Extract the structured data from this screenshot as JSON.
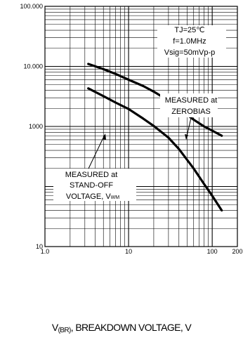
{
  "chart_data": {
    "type": "line",
    "x_scale": "log",
    "y_scale": "log",
    "xlim": [
      1,
      200
    ],
    "ylim": [
      10,
      100000
    ],
    "x_ticks": [
      {
        "value": 1,
        "label": "1.0"
      },
      {
        "value": 10,
        "label": "10"
      },
      {
        "value": 100,
        "label": "100"
      },
      {
        "value": 200,
        "label": "200"
      }
    ],
    "y_ticks": [
      {
        "value": 10,
        "label": "10"
      },
      {
        "value": 1000,
        "label": "1000"
      },
      {
        "value": 10000,
        "label": "10.000"
      },
      {
        "value": 100000,
        "label": "100.000"
      }
    ],
    "grid": true,
    "xlabel": {
      "main": "V",
      "sub": "(BR)",
      "rest": ", BREAKDOWN VOLTAGE, V"
    },
    "conditions": [
      "TJ=25℃",
      "f=1.0MHz",
      "Vsig=50mVp-p"
    ],
    "series": [
      {
        "name": "MEASURED at ZEROBIAS",
        "label_lines": [
          "MEASURED at",
          "ZEROBIAS"
        ],
        "x": [
          3.3,
          5,
          7,
          10,
          15,
          20,
          30,
          40,
          60,
          80,
          100,
          130
        ],
        "y": [
          11000,
          9000,
          7500,
          6000,
          4700,
          3800,
          2700,
          2000,
          1300,
          1000,
          850,
          700
        ]
      },
      {
        "name": "MEASURED at STAND-OFF VOLTAGE, VWM",
        "label_lines": [
          "MEASURED at",
          "STAND-OFF",
          "VOLTAGE, V"
        ],
        "label_sub": "WM",
        "x": [
          3.3,
          5,
          7,
          10,
          15,
          20,
          30,
          40,
          60,
          80,
          100,
          130
        ],
        "y": [
          4300,
          3200,
          2500,
          1950,
          1350,
          1020,
          650,
          420,
          200,
          110,
          70,
          40
        ]
      }
    ]
  }
}
